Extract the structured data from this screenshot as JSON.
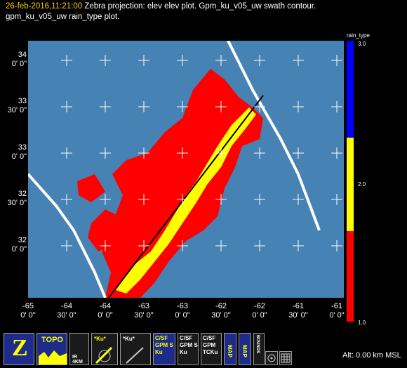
{
  "header": {
    "timestamp": "26-feb-2016,11:21:00",
    "line1": "Zebra projection: elev elev  plot.  Gpm_ku_v05_uw swath contour.",
    "line2": "gpm_ku_v05_uw rain_type  plot."
  },
  "map": {
    "background": "#4682b4",
    "y_labels": [
      {
        "deg": "34",
        "min": "0' 0\""
      },
      {
        "deg": "33",
        "min": "30' 0\""
      },
      {
        "deg": "33",
        "min": "0' 0\""
      },
      {
        "deg": "32",
        "min": "30' 0\""
      },
      {
        "deg": "32",
        "min": "0' 0\""
      }
    ],
    "x_labels": [
      {
        "deg": "-65",
        "min": "0' 0\""
      },
      {
        "deg": "-64",
        "min": "30' 0\""
      },
      {
        "deg": "-64",
        "min": "0' 0\""
      },
      {
        "deg": "-63",
        "min": "30' 0\""
      },
      {
        "deg": "-63",
        "min": "0' 0\""
      },
      {
        "deg": "-62",
        "min": "30' 0\""
      },
      {
        "deg": "-62",
        "min": "0' 0\""
      },
      {
        "deg": "-61",
        "min": "30' 0\""
      },
      {
        "deg": "-61",
        "min": "0' 0\""
      }
    ]
  },
  "colorbar": {
    "title": "rain_type",
    "labels": [
      "3.0",
      "2.0",
      "1.0"
    ],
    "colors": {
      "convective": "#ff0000",
      "stratiform": "#ffff00",
      "other": "#0000ff"
    }
  },
  "toolbar": {
    "buttons": [
      {
        "name": "zebra-logo-button",
        "label": "Z"
      },
      {
        "name": "topo-button",
        "label": "TOPO"
      },
      {
        "name": "ir-4km-button",
        "label": "IR 4KM"
      },
      {
        "name": "ku-gpm-button",
        "label": "*Ku*"
      },
      {
        "name": "ku-gpm-v5-button",
        "label": "*Ku*"
      },
      {
        "name": "csf-gpm-ku-button",
        "label": "C/SF GPM S Ku"
      },
      {
        "name": "csf-gpm-ku-alt-button",
        "label": "C/SF GPM S Ku"
      },
      {
        "name": "csf-gpm-tcku-button",
        "label": "C/SF GPM TCKu"
      },
      {
        "name": "map-button",
        "label": "MAP"
      },
      {
        "name": "map-alt-button",
        "label": "MAP"
      },
      {
        "name": "bounds-button",
        "label": "BOUNDS"
      }
    ]
  },
  "status": {
    "altitude": "Alt: 0.00 km MSL"
  }
}
